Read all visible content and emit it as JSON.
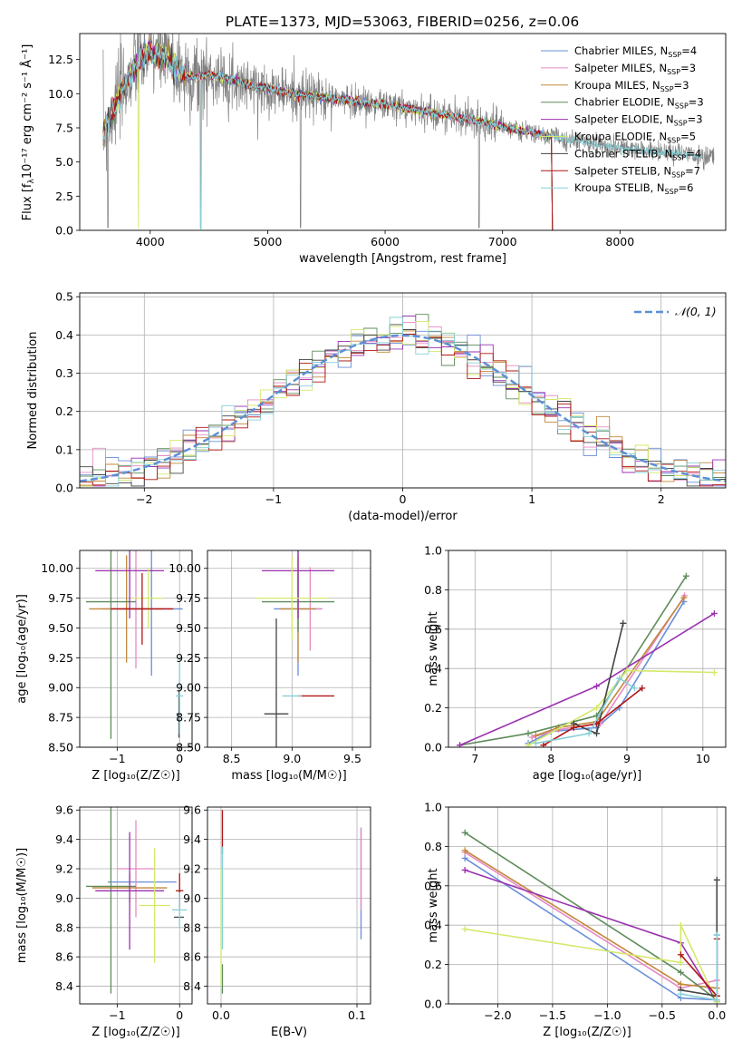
{
  "figure": {
    "title": "PLATE=1373, MJD=53063, FIBERID=0256, z=0.06"
  },
  "models": [
    {
      "name": "Chabrier MILES",
      "nssp": "4",
      "color": "#6a8fd8"
    },
    {
      "name": "Salpeter MILES",
      "nssp": "3",
      "color": "#e78ac3"
    },
    {
      "name": "Kroupa MILES",
      "nssp": "3",
      "color": "#c2883a"
    },
    {
      "name": "Chabrier ELODIE",
      "nssp": "3",
      "color": "#5f8c5a"
    },
    {
      "name": "Salpeter ELODIE",
      "nssp": "3",
      "color": "#9b30b0"
    },
    {
      "name": "Kroupa ELODIE",
      "nssp": "5",
      "color": "#d4e86a"
    },
    {
      "name": "Chabrier STELIB",
      "nssp": "4",
      "color": "#444444"
    },
    {
      "name": "Salpeter STELIB",
      "nssp": "7",
      "color": "#b01515"
    },
    {
      "name": "Kroupa STELIB",
      "nssp": "6",
      "color": "#86d0d8"
    }
  ],
  "chart_data": [
    {
      "id": "spectrum",
      "type": "line",
      "xlabel": "wavelength [Angstrom, rest frame]",
      "ylabel_main": "Flux [f",
      "ylabel_sub": "λ",
      "ylabel_rest": "10⁻¹⁷ erg cm⁻² s⁻¹ Å⁻¹]",
      "xlim": [
        3400,
        8900
      ],
      "ylim": [
        0,
        14.4
      ],
      "xticks": [
        4000,
        5000,
        6000,
        7000,
        8000
      ],
      "yticks": [
        0.0,
        2.5,
        5.0,
        7.5,
        10.0,
        12.5
      ],
      "continuum": [
        [
          3600,
          7.0
        ],
        [
          3700,
          9.2
        ],
        [
          3800,
          10.9
        ],
        [
          3900,
          12.4
        ],
        [
          4000,
          13.1
        ],
        [
          4100,
          12.8
        ],
        [
          4200,
          12.0
        ],
        [
          4300,
          11.3
        ],
        [
          4400,
          11.2
        ],
        [
          4500,
          11.4
        ],
        [
          4600,
          11.2
        ],
        [
          4700,
          11.0
        ],
        [
          4800,
          10.8
        ],
        [
          4900,
          10.5
        ],
        [
          5000,
          10.4
        ],
        [
          5200,
          10.0
        ],
        [
          5400,
          9.8
        ],
        [
          5600,
          9.6
        ],
        [
          5800,
          9.4
        ],
        [
          6000,
          9.2
        ],
        [
          6200,
          8.9
        ],
        [
          6400,
          8.6
        ],
        [
          6600,
          8.3
        ],
        [
          6800,
          8.0
        ],
        [
          7000,
          7.6
        ],
        [
          7200,
          7.2
        ],
        [
          7400,
          6.9
        ],
        [
          7600,
          6.6
        ],
        [
          7800,
          6.3
        ],
        [
          8000,
          6.0
        ],
        [
          8200,
          5.9
        ],
        [
          8400,
          5.7
        ],
        [
          8600,
          5.5
        ],
        [
          8800,
          5.3
        ]
      ],
      "model_cutoff": 7420
    },
    {
      "id": "residuals",
      "type": "histogram",
      "xlabel": "(data-model)/error",
      "ylabel": "Normed distribution",
      "legend": "𝒩(0, 1)",
      "xlim": [
        -2.5,
        2.5
      ],
      "ylim": [
        0,
        0.51
      ],
      "xticks": [
        -2,
        -1,
        0,
        1,
        2
      ],
      "yticks": [
        0.0,
        0.1,
        0.2,
        0.3,
        0.4,
        0.5
      ],
      "bin_width": 0.1
    },
    {
      "id": "age_vs_z",
      "type": "errorbar",
      "xlabel": "Z [log₁₀(Z/Z☉)]",
      "ylabel": "age  [log₁₀(age/yr)]",
      "xlim": [
        -1.6,
        0.2
      ],
      "ylim": [
        8.5,
        10.15
      ],
      "xticks": [
        -1,
        0
      ],
      "yticks": [
        8.5,
        8.75,
        9.0,
        9.25,
        9.5,
        9.75,
        10.0
      ],
      "points": [
        {
          "m": 0,
          "x": -0.45,
          "y": 9.66,
          "xe": 0.5,
          "ye": 0.56
        },
        {
          "m": 1,
          "x": -0.7,
          "y": 9.66,
          "xe": 0.55,
          "ye": 0.5
        },
        {
          "m": 2,
          "x": -0.85,
          "y": 9.66,
          "xe": 0.6,
          "ye": 0.45
        },
        {
          "m": 3,
          "x": -1.1,
          "y": 9.72,
          "xe": 0.4,
          "ye": 1.15
        },
        {
          "m": 4,
          "x": -0.8,
          "y": 9.98,
          "xe": 0.55,
          "ye": 0.4
        },
        {
          "m": 5,
          "x": -0.5,
          "y": 9.75,
          "xe": 0.25,
          "ye": 0.25
        },
        {
          "m": 6,
          "x": -0.01,
          "y": 8.78,
          "xe": 0.04,
          "ye": 0.2
        },
        {
          "m": 7,
          "x": -0.6,
          "y": 9.66,
          "xe": 0.5,
          "ye": 0.3
        },
        {
          "m": 8,
          "x": 0.0,
          "y": 8.93,
          "xe": 0.06,
          "ye": 0.32
        }
      ]
    },
    {
      "id": "age_vs_mass",
      "type": "errorbar",
      "xlabel": "mass [log₁₀(M/M☉)]",
      "ylabel": "",
      "xlim": [
        8.3,
        9.65
      ],
      "ylim": [
        8.5,
        10.15
      ],
      "xticks": [
        8.5,
        9.0,
        9.5
      ],
      "yticks": [
        8.5,
        8.75,
        9.0,
        9.25,
        9.5,
        9.75,
        10.0
      ],
      "points": [
        {
          "m": 0,
          "x": 9.05,
          "y": 9.66,
          "xe": 0.2,
          "ye": 0.56
        },
        {
          "m": 1,
          "x": 9.15,
          "y": 9.66,
          "xe": 0.1,
          "ye": 0.35
        },
        {
          "m": 2,
          "x": 9.05,
          "y": 9.66,
          "xe": 0.15,
          "ye": 0.45
        },
        {
          "m": 3,
          "x": 9.05,
          "y": 9.72,
          "xe": 0.3,
          "ye": 0.25
        },
        {
          "m": 4,
          "x": 9.05,
          "y": 9.98,
          "xe": 0.3,
          "ye": 0.4
        },
        {
          "m": 5,
          "x": 9.0,
          "y": 9.75,
          "xe": 0.3,
          "ye": 0.35
        },
        {
          "m": 6,
          "x": 8.87,
          "y": 8.78,
          "xe": 0.1,
          "ye": 0.8
        },
        {
          "m": 7,
          "x": 9.2,
          "y": 8.93,
          "xe": 0.15,
          "ye": 0.0
        },
        {
          "m": 8,
          "x": 9.0,
          "y": 8.93,
          "xe": 0.08,
          "ye": 0.0
        }
      ]
    },
    {
      "id": "weight_vs_age",
      "type": "line",
      "xlabel": "age  [log₁₀(age/yr)]",
      "ylabel": "mass weight",
      "xlim": [
        6.65,
        10.3
      ],
      "ylim": [
        0,
        1.0
      ],
      "xticks": [
        7,
        8,
        9,
        10
      ],
      "yticks": [
        0.0,
        0.2,
        0.4,
        0.6,
        0.8,
        1.0
      ],
      "series": [
        {
          "m": 0,
          "x": [
            7.7,
            8.0,
            8.6,
            8.9,
            9.75
          ],
          "y": [
            0.02,
            0.08,
            0.1,
            0.2,
            0.74
          ]
        },
        {
          "m": 1,
          "x": [
            7.75,
            8.1,
            8.65,
            9.76
          ],
          "y": [
            0.05,
            0.09,
            0.12,
            0.77
          ]
        },
        {
          "m": 2,
          "x": [
            7.8,
            8.1,
            8.6,
            9.75
          ],
          "y": [
            0.06,
            0.1,
            0.13,
            0.76
          ]
        },
        {
          "m": 3,
          "x": [
            6.8,
            7.7,
            8.6,
            9.78
          ],
          "y": [
            0.01,
            0.07,
            0.16,
            0.87
          ]
        },
        {
          "m": 4,
          "x": [
            6.8,
            8.6,
            10.15
          ],
          "y": [
            0.01,
            0.31,
            0.68
          ]
        },
        {
          "m": 5,
          "x": [
            7.7,
            8.6,
            9.0,
            10.15
          ],
          "y": [
            0.01,
            0.2,
            0.39,
            0.38
          ]
        },
        {
          "m": 6,
          "x": [
            8.3,
            8.6,
            8.95
          ],
          "y": [
            0.12,
            0.07,
            0.63
          ]
        },
        {
          "m": 7,
          "x": [
            7.9,
            8.3,
            8.6,
            9.2
          ],
          "y": [
            0.01,
            0.1,
            0.12,
            0.3
          ]
        },
        {
          "m": 8,
          "x": [
            7.8,
            8.5,
            8.9,
            9.1
          ],
          "y": [
            0.02,
            0.07,
            0.35,
            0.3
          ]
        }
      ]
    },
    {
      "id": "mass_vs_z",
      "type": "errorbar",
      "xlabel": "Z [log₁₀(Z/Z☉)]",
      "ylabel": "mass [log₁₀(M/M☉)]",
      "xlim": [
        -1.6,
        0.2
      ],
      "ylim": [
        8.28,
        9.62
      ],
      "xticks": [
        -1,
        0
      ],
      "yticks": [
        8.4,
        8.6,
        8.8,
        9.0,
        9.2,
        9.4,
        9.6
      ],
      "points": [
        {
          "m": 0,
          "x": -0.6,
          "y": 9.11,
          "xe": 0.55,
          "ye": 0.0
        },
        {
          "m": 1,
          "x": -0.7,
          "y": 9.2,
          "xe": 0.3,
          "ye": 0.33
        },
        {
          "m": 2,
          "x": -0.8,
          "y": 9.07,
          "xe": 0.6,
          "ye": 0.1
        },
        {
          "m": 3,
          "x": -1.1,
          "y": 9.08,
          "xe": 0.4,
          "ye": 0.73
        },
        {
          "m": 4,
          "x": -0.8,
          "y": 9.05,
          "xe": 0.55,
          "ye": 0.4
        },
        {
          "m": 5,
          "x": -0.4,
          "y": 8.95,
          "xe": 0.25,
          "ye": 0.39
        },
        {
          "m": 6,
          "x": -0.01,
          "y": 8.87,
          "xe": 0.08,
          "ye": 0.0
        },
        {
          "m": 7,
          "x": 0.0,
          "y": 9.05,
          "xe": 0.06,
          "ye": 0.12
        },
        {
          "m": 8,
          "x": 0.0,
          "y": 8.92,
          "xe": 0.12,
          "ye": 0.12
        }
      ]
    },
    {
      "id": "mass_vs_ebv",
      "type": "errorbar",
      "xlabel": "E(B-V)",
      "ylabel": "",
      "xlim": [
        -0.01,
        0.11
      ],
      "ylim": [
        8.28,
        9.62
      ],
      "xticks": [
        0.0,
        0.1
      ],
      "yticks": [
        8.4,
        8.6,
        8.8,
        9.0,
        9.2,
        9.4,
        9.6
      ],
      "points": [
        {
          "m": 0,
          "x": 0.103,
          "y": 9.1,
          "xe": 0.0,
          "ye": 0.38
        },
        {
          "m": 1,
          "x": 0.103,
          "y": 9.2,
          "xe": 0.0,
          "ye": 0.28
        },
        {
          "m": 3,
          "x": 0.001,
          "y": 8.45,
          "xe": 0.0,
          "ye": 0.1
        },
        {
          "m": 5,
          "x": 0.0,
          "y": 8.8,
          "xe": 0.0,
          "ye": 0.4
        },
        {
          "m": 7,
          "x": 0.001,
          "y": 9.45,
          "xe": 0.0,
          "ye": 0.15
        },
        {
          "m": 8,
          "x": 0.001,
          "y": 9.0,
          "xe": 0.0,
          "ye": 0.35
        }
      ]
    },
    {
      "id": "weight_vs_z",
      "type": "line",
      "xlabel": "Z [log₁₀(Z/Z☉)]",
      "ylabel": "mass weight",
      "xlim": [
        -2.45,
        0.08
      ],
      "ylim": [
        0,
        1.0
      ],
      "xticks": [
        -2.0,
        -1.5,
        -1.0,
        -0.5,
        0.0
      ],
      "yticks": [
        0.0,
        0.2,
        0.4,
        0.6,
        0.8,
        1.0
      ],
      "series": [
        {
          "m": 0,
          "x": [
            -2.3,
            -0.33,
            0.0,
            0.0
          ],
          "y": [
            0.74,
            0.03,
            0.02,
            0.35
          ]
        },
        {
          "m": 1,
          "x": [
            -2.3,
            -0.33,
            0.0
          ],
          "y": [
            0.77,
            0.08,
            0.12
          ]
        },
        {
          "m": 2,
          "x": [
            -2.3,
            -0.33,
            0.0
          ],
          "y": [
            0.78,
            0.1,
            0.08
          ]
        },
        {
          "m": 3,
          "x": [
            -2.3,
            -0.33,
            0.0
          ],
          "y": [
            0.87,
            0.16,
            0.02
          ]
        },
        {
          "m": 4,
          "x": [
            -2.3,
            -0.33,
            0.0
          ],
          "y": [
            0.68,
            0.31,
            0.01
          ]
        },
        {
          "m": 5,
          "x": [
            -2.3,
            -0.33,
            -0.33,
            0.0
          ],
          "y": [
            0.38,
            0.21,
            0.4,
            0.01
          ]
        },
        {
          "m": 6,
          "x": [
            -0.33,
            0.0,
            0.0
          ],
          "y": [
            0.07,
            0.04,
            0.63
          ]
        },
        {
          "m": 7,
          "x": [
            -0.33,
            0.0,
            0.0
          ],
          "y": [
            0.25,
            0.04,
            0.33
          ]
        },
        {
          "m": 8,
          "x": [
            -0.33,
            0.0,
            0.0
          ],
          "y": [
            0.05,
            0.02,
            0.35
          ]
        }
      ]
    }
  ]
}
